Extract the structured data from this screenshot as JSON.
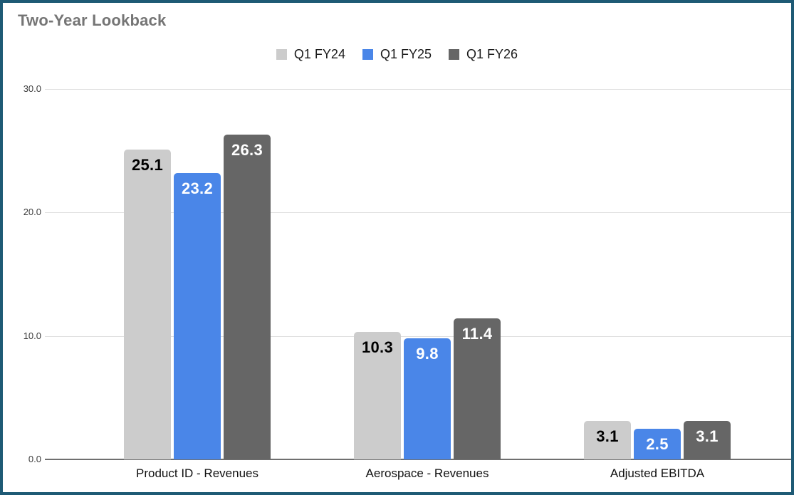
{
  "chart_data": {
    "type": "bar",
    "title": "Two-Year Lookback",
    "categories": [
      "Product ID - Revenues",
      "Aerospace - Revenues",
      "Adjusted EBITDA"
    ],
    "series": [
      {
        "name": "Q1 FY24",
        "color": "#cccccc",
        "label_color": "#000000",
        "values": [
          25.1,
          10.3,
          3.1
        ]
      },
      {
        "name": "Q1 FY25",
        "color": "#4a86e8",
        "label_color": "#ffffff",
        "values": [
          23.2,
          9.8,
          2.5
        ]
      },
      {
        "name": "Q1 FY26",
        "color": "#666666",
        "label_color": "#ffffff",
        "values": [
          26.3,
          11.4,
          3.1
        ]
      }
    ],
    "y_ticks": [
      {
        "label": "0.0",
        "value": 0
      },
      {
        "label": "10.0",
        "value": 10
      },
      {
        "label": "20.0",
        "value": 20
      },
      {
        "label": "30.0",
        "value": 30
      }
    ],
    "ylim": [
      0,
      30
    ],
    "grid": "horizontal",
    "legend_position": "top-center",
    "data_label_decimals": 1,
    "colors": {
      "frame_border": "#1e5a75",
      "title_text": "#757575",
      "gridline": "#e0e0e0",
      "baseline": "#6f6f6f"
    }
  }
}
